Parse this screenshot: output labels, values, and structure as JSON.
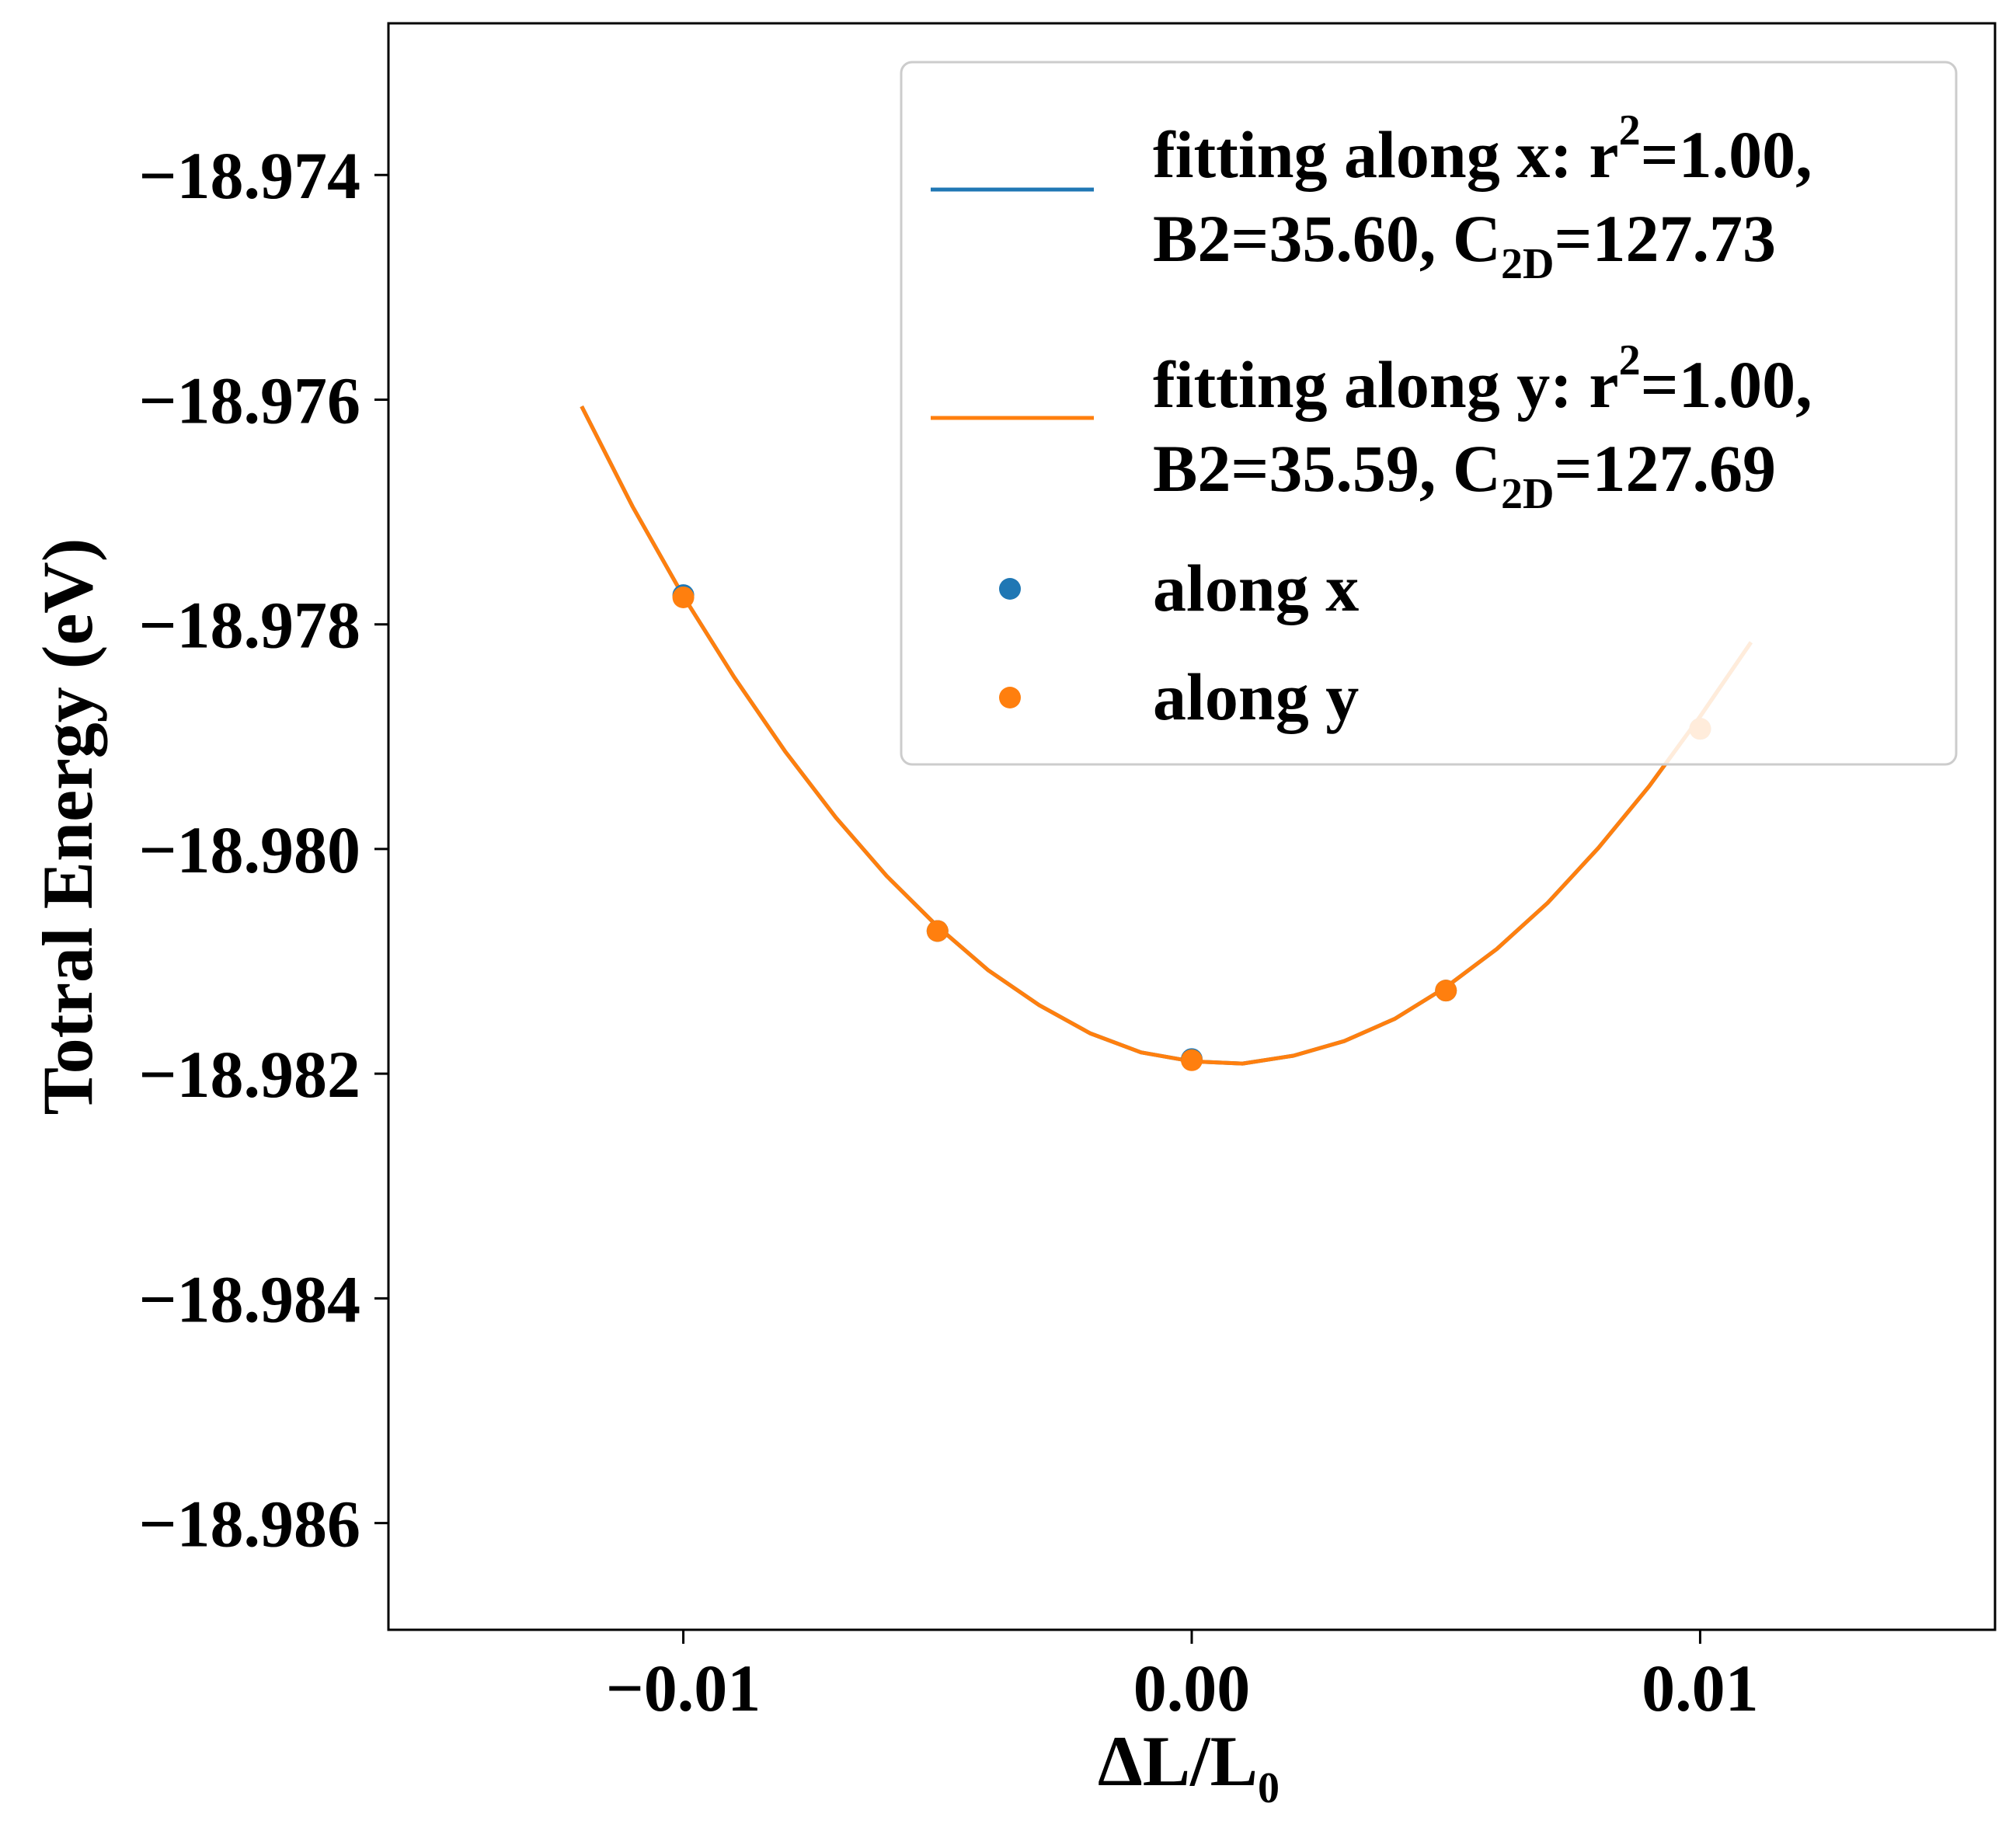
{
  "chart_data": {
    "type": "line",
    "xlabel": {
      "main": "ΔL/L",
      "sub": "0"
    },
    "ylabel": "Totral Energy (eV)",
    "xlim": [
      -0.0158,
      0.0158
    ],
    "ylim": [
      -18.98695,
      -18.97265
    ],
    "xticks": [
      -0.01,
      0.0,
      0.01
    ],
    "xtick_labels": [
      "−0.01",
      "0.00",
      "0.01"
    ],
    "yticks": [
      -18.974,
      -18.976,
      -18.978,
      -18.98,
      -18.982,
      -18.984,
      -18.986
    ],
    "ytick_labels": [
      "−18.974",
      "−18.976",
      "−18.978",
      "−18.980",
      "−18.982",
      "−18.984",
      "−18.986"
    ],
    "grid": false,
    "legend_position": "top-right",
    "fit_curves": [
      {
        "name": "fitting along x",
        "legend_line1": {
          "prefix": "fitting along x: r",
          "sup": "2",
          "suffix": "=1.00,"
        },
        "legend_line2": {
          "prefix": "B2=35.60, C",
          "sub": "2D",
          "suffix": "=127.73"
        },
        "color": "#1f77b4",
        "x": [
          -0.012,
          -0.011,
          -0.01,
          -0.009,
          -0.008,
          -0.007,
          -0.006,
          -0.005,
          -0.004,
          -0.003,
          -0.002,
          -0.001,
          0.0,
          0.001,
          0.002,
          0.003,
          0.004,
          0.005,
          0.006,
          0.007,
          0.008,
          0.009,
          0.01,
          0.011
        ],
        "y": [
          -18.97606,
          -18.97695,
          -18.97775,
          -18.97847,
          -18.97913,
          -18.97972,
          -18.98024,
          -18.98069,
          -18.98108,
          -18.98139,
          -18.98164,
          -18.98181,
          -18.98189,
          -18.98191,
          -18.98184,
          -18.98171,
          -18.98151,
          -18.98123,
          -18.98089,
          -18.98048,
          -18.97999,
          -18.97944,
          -18.97882,
          -18.97816
        ]
      },
      {
        "name": "fitting along y",
        "legend_line1": {
          "prefix": "fitting along y: r",
          "sup": "2",
          "suffix": "=1.00,"
        },
        "legend_line2": {
          "prefix": "B2=35.59, C",
          "sub": "2D",
          "suffix": "=127.69"
        },
        "color": "#ff7f0e",
        "x": [
          -0.012,
          -0.011,
          -0.01,
          -0.009,
          -0.008,
          -0.007,
          -0.006,
          -0.005,
          -0.004,
          -0.003,
          -0.002,
          -0.001,
          0.0,
          0.001,
          0.002,
          0.003,
          0.004,
          0.005,
          0.006,
          0.007,
          0.008,
          0.009,
          0.01,
          0.011
        ],
        "y": [
          -18.97606,
          -18.97695,
          -18.97775,
          -18.97847,
          -18.97913,
          -18.97972,
          -18.98024,
          -18.98069,
          -18.98108,
          -18.98139,
          -18.98164,
          -18.98181,
          -18.98189,
          -18.98191,
          -18.98184,
          -18.98171,
          -18.98151,
          -18.98123,
          -18.98089,
          -18.98048,
          -18.97999,
          -18.97944,
          -18.97882,
          -18.97816
        ]
      }
    ],
    "scatter_series": [
      {
        "name": "along x",
        "color": "#1f77b4",
        "x": [
          -0.01,
          -0.005,
          0.0,
          0.005,
          0.01
        ],
        "y": [
          -18.97774,
          -18.98073,
          -18.98187,
          -18.98126,
          -18.97893
        ]
      },
      {
        "name": "along y",
        "color": "#ff7f0e",
        "x": [
          -0.01,
          -0.005,
          0.0,
          0.005,
          0.01
        ],
        "y": [
          -18.97776,
          -18.98073,
          -18.98188,
          -18.98126,
          -18.97893
        ]
      }
    ]
  }
}
